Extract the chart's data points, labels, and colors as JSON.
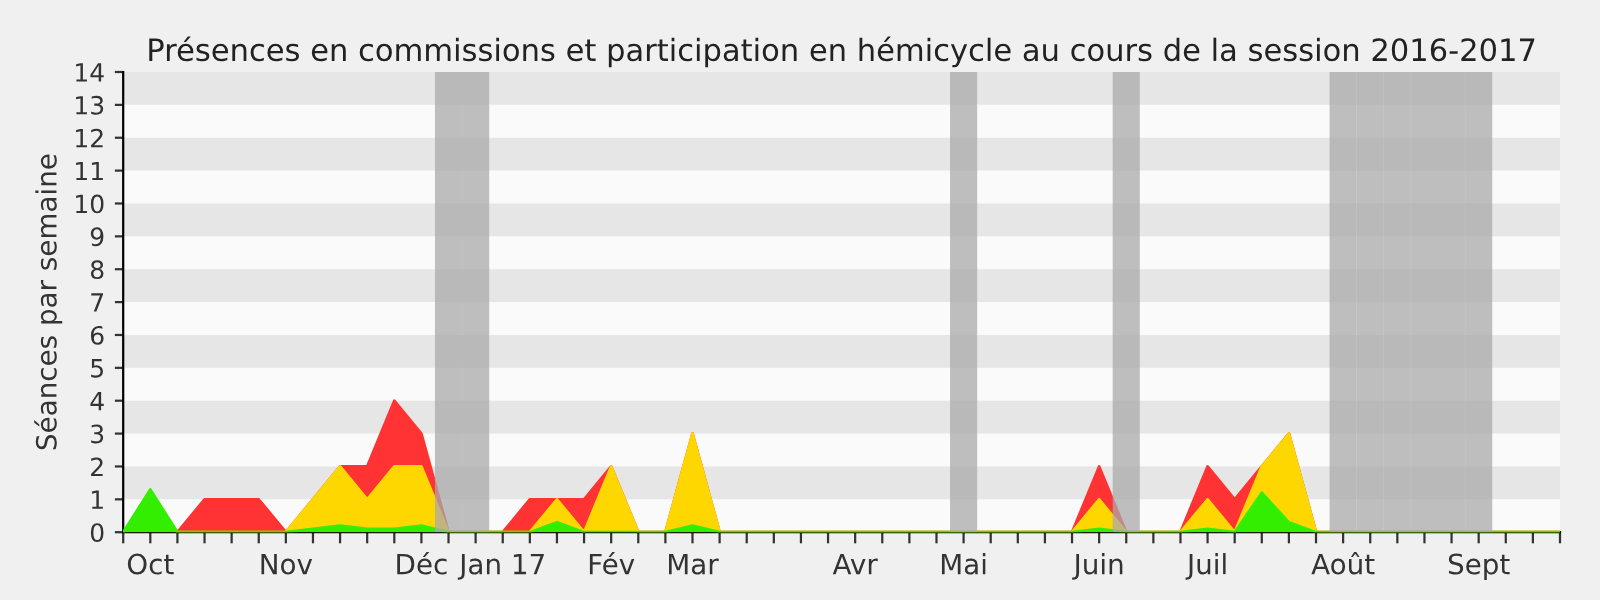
{
  "chart_data": {
    "type": "area",
    "title": "Présences en commissions et participation en hémicycle au cours de la session 2016-2017",
    "ylabel": "Séances par semaine",
    "categories": [
      null,
      "Oct",
      null,
      null,
      null,
      null,
      "Nov",
      null,
      null,
      null,
      null,
      "Déc",
      null,
      null,
      "Jan 17",
      null,
      null,
      null,
      "Fév",
      null,
      null,
      "Mar",
      null,
      null,
      null,
      null,
      null,
      "Avr",
      null,
      null,
      null,
      "Mai",
      null,
      null,
      null,
      null,
      "Juin",
      null,
      null,
      null,
      "Juil",
      null,
      null,
      null,
      null,
      "Août",
      null,
      null,
      null,
      null,
      "Sept",
      null,
      null,
      null
    ],
    "series": [
      {
        "color": "#ff3333",
        "values": [
          0,
          1,
          0,
          1,
          1,
          1,
          0,
          1,
          2,
          2,
          4,
          3,
          0,
          0,
          0,
          1,
          1,
          1,
          2,
          0,
          0,
          3,
          0,
          0,
          0,
          0,
          0,
          0,
          0,
          0,
          0,
          0,
          0,
          0,
          0,
          0,
          2,
          0,
          0,
          0,
          2,
          1,
          2,
          3,
          0,
          0,
          0,
          0,
          0,
          0,
          0,
          0,
          0,
          0
        ]
      },
      {
        "color": "#ffd700",
        "values": [
          0,
          1,
          0,
          0,
          0,
          0,
          0,
          1,
          2,
          1,
          2,
          2,
          0,
          0,
          0,
          0,
          1,
          0,
          2,
          0,
          0,
          3,
          0,
          0,
          0,
          0,
          0,
          0,
          0,
          0,
          0,
          0,
          0,
          0,
          0,
          0,
          1,
          0,
          0,
          0,
          1,
          0,
          2,
          3,
          0,
          0,
          0,
          0,
          0,
          0,
          0,
          0,
          0,
          0
        ]
      },
      {
        "color": "#33ee00",
        "values": [
          0,
          1.3,
          0,
          0,
          0,
          0,
          0,
          0.1,
          0.2,
          0.1,
          0.1,
          0.2,
          0,
          0,
          0,
          0,
          0.3,
          0,
          0,
          0,
          0,
          0.2,
          0,
          0,
          0,
          0,
          0,
          0,
          0,
          0,
          0,
          0,
          0,
          0,
          0,
          0,
          0.1,
          0,
          0,
          0,
          0.1,
          0,
          1.2,
          0.3,
          0,
          0,
          0,
          0,
          0,
          0,
          0,
          0,
          0,
          0
        ]
      }
    ],
    "ylim": [
      0,
      14
    ],
    "yticks": [
      0,
      1,
      2,
      3,
      4,
      5,
      6,
      7,
      8,
      9,
      10,
      11,
      12,
      13,
      14
    ],
    "grid": false
  }
}
